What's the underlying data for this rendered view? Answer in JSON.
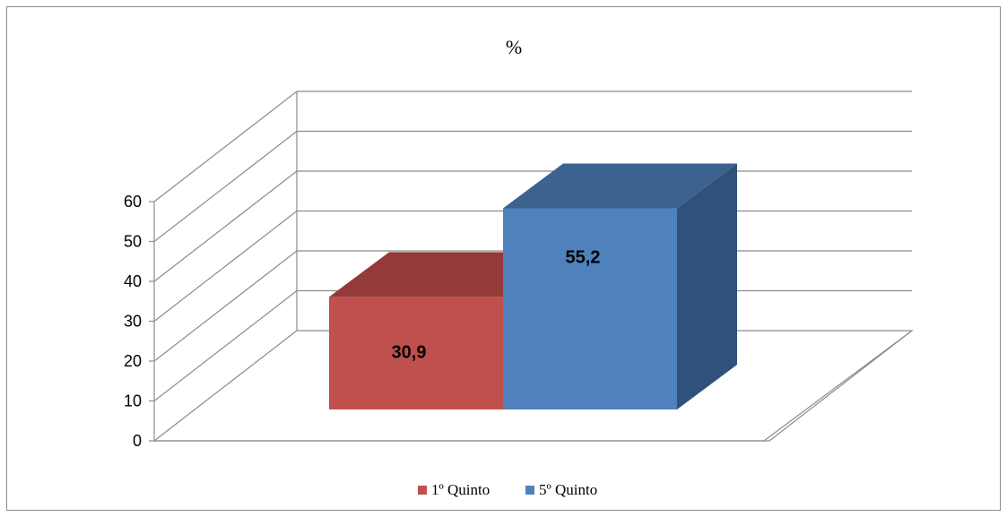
{
  "chart_data": {
    "type": "bar",
    "title": "%",
    "categories": [
      ""
    ],
    "series": [
      {
        "name": "1º Quinto",
        "values": [
          30.9
        ],
        "label": "30,9",
        "color": "#c0504d",
        "top_color": "#943b39"
      },
      {
        "name": "5º Quinto",
        "values": [
          55.2
        ],
        "label": "55,2",
        "color": "#4f81bd",
        "top_color": "#3c628f",
        "side_color": "#30527a"
      }
    ],
    "ylim": [
      0,
      60
    ],
    "yticks": [
      0,
      10,
      20,
      30,
      40,
      50,
      60
    ],
    "grid": true,
    "legend": "bottom",
    "style": "3d-clustered-column"
  }
}
